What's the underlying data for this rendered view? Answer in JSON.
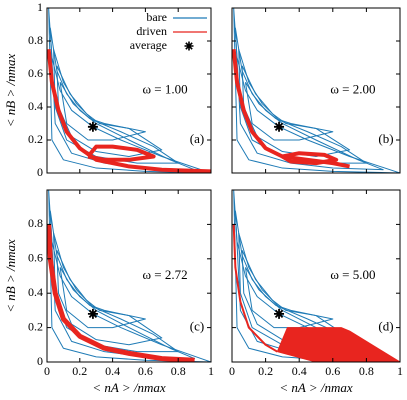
{
  "chart_data": [
    {
      "type": "line",
      "ylabel": "< nB > /nmax",
      "text": "ω = 1.00",
      "label": "(a)",
      "xlim": [
        0,
        1
      ],
      "ylim": [
        0,
        1
      ],
      "xticks": [
        0,
        0.2,
        0.4,
        0.6,
        0.8,
        1
      ],
      "yticks": [
        0,
        0.2,
        0.4,
        0.6,
        0.8,
        1
      ],
      "legend": "upper right",
      "series": [
        {
          "name": "bare",
          "color": "#1f7bb6",
          "width": 1,
          "x": [
            0.02,
            0.06,
            0.12,
            0.2,
            0.3,
            0.5,
            0.75,
            0.9,
            0.6,
            0.35,
            0.15,
            0.05,
            0.02
          ],
          "values": [
            0.88,
            0.62,
            0.48,
            0.38,
            0.3,
            0.2,
            0.08,
            0.02,
            0.03,
            0.06,
            0.12,
            0.3,
            0.88
          ]
        },
        {
          "color": "#1f7bb6",
          "width": 1,
          "x": [
            0.04,
            0.1,
            0.18,
            0.28,
            0.45,
            0.65,
            0.8,
            0.55,
            0.3,
            0.12,
            0.05,
            0.04
          ],
          "values": [
            0.75,
            0.55,
            0.42,
            0.32,
            0.25,
            0.16,
            0.06,
            0.06,
            0.1,
            0.2,
            0.4,
            0.75
          ]
        },
        {
          "color": "#1f7bb6",
          "width": 1,
          "x": [
            0.06,
            0.14,
            0.24,
            0.32,
            0.5,
            0.7,
            0.5,
            0.3,
            0.15,
            0.07,
            0.06
          ],
          "values": [
            0.65,
            0.48,
            0.36,
            0.3,
            0.27,
            0.14,
            0.1,
            0.13,
            0.22,
            0.4,
            0.65
          ]
        },
        {
          "color": "#1f7bb6",
          "width": 1,
          "x": [
            0.01,
            0.03,
            0.08,
            0.15,
            0.28,
            0.45,
            0.7,
            1,
            0.6,
            0.3,
            0.1,
            0.03,
            0.01
          ],
          "values": [
            1,
            0.7,
            0.5,
            0.38,
            0.28,
            0.2,
            0.1,
            0,
            0.01,
            0.03,
            0.08,
            0.2,
            1
          ]
        },
        {
          "color": "#1f7bb6",
          "width": 1,
          "x": [
            0.08,
            0.16,
            0.26,
            0.35,
            0.6,
            0.4,
            0.25,
            0.12,
            0.08
          ],
          "values": [
            0.55,
            0.42,
            0.33,
            0.3,
            0.25,
            0.2,
            0.2,
            0.3,
            0.55
          ]
        },
        {
          "name": "driven",
          "color": "#e8251f",
          "width": 4,
          "x": [
            0.01,
            0.03,
            0.07,
            0.12,
            0.2,
            0.3,
            0.5,
            0.7,
            1
          ],
          "values": [
            0.75,
            0.55,
            0.38,
            0.25,
            0.15,
            0.08,
            0.04,
            0.02,
            0.01
          ]
        },
        {
          "color": "#e8251f",
          "width": 4,
          "x": [
            0.25,
            0.3,
            0.4,
            0.55,
            0.65,
            0.5,
            0.35,
            0.25
          ],
          "values": [
            0.1,
            0.16,
            0.16,
            0.14,
            0.1,
            0.08,
            0.08,
            0.1
          ]
        }
      ],
      "average": {
        "name": "average",
        "x": 0.28,
        "y": 0.28
      }
    },
    {
      "type": "line",
      "text": "ω = 2.00",
      "label": "(b)",
      "xlim": [
        0,
        1
      ],
      "ylim": [
        0,
        1
      ],
      "xticks": [
        0,
        0.2,
        0.4,
        0.6,
        0.8,
        1
      ],
      "yticks": [
        0,
        0.2,
        0.4,
        0.6,
        0.8,
        1
      ],
      "series": [
        {
          "color": "#1f7bb6",
          "width": 1,
          "x": [
            0.02,
            0.06,
            0.12,
            0.2,
            0.3,
            0.5,
            0.75,
            0.9,
            0.6,
            0.35,
            0.15,
            0.05,
            0.02
          ],
          "values": [
            0.88,
            0.62,
            0.48,
            0.38,
            0.3,
            0.2,
            0.08,
            0.02,
            0.03,
            0.06,
            0.12,
            0.3,
            0.88
          ]
        },
        {
          "color": "#1f7bb6",
          "width": 1,
          "x": [
            0.04,
            0.1,
            0.18,
            0.28,
            0.45,
            0.65,
            0.8,
            0.55,
            0.3,
            0.12,
            0.05,
            0.04
          ],
          "values": [
            0.75,
            0.55,
            0.42,
            0.32,
            0.25,
            0.16,
            0.06,
            0.06,
            0.1,
            0.2,
            0.4,
            0.75
          ]
        },
        {
          "color": "#1f7bb6",
          "width": 1,
          "x": [
            0.06,
            0.14,
            0.24,
            0.32,
            0.5,
            0.7,
            0.5,
            0.3,
            0.15,
            0.07,
            0.06
          ],
          "values": [
            0.65,
            0.48,
            0.36,
            0.3,
            0.27,
            0.14,
            0.1,
            0.13,
            0.22,
            0.4,
            0.65
          ]
        },
        {
          "color": "#1f7bb6",
          "width": 1,
          "x": [
            0.01,
            0.03,
            0.08,
            0.15,
            0.28,
            0.45,
            0.7,
            1,
            0.6,
            0.3,
            0.1,
            0.03,
            0.01
          ],
          "values": [
            1,
            0.7,
            0.5,
            0.38,
            0.28,
            0.2,
            0.1,
            0,
            0.01,
            0.03,
            0.08,
            0.2,
            1
          ]
        },
        {
          "color": "#1f7bb6",
          "width": 1,
          "x": [
            0.08,
            0.16,
            0.26,
            0.35,
            0.6,
            0.4,
            0.25,
            0.12,
            0.08
          ],
          "values": [
            0.55,
            0.42,
            0.33,
            0.3,
            0.25,
            0.2,
            0.2,
            0.3,
            0.55
          ]
        },
        {
          "color": "#e8251f",
          "width": 4,
          "x": [
            0.01,
            0.03,
            0.07,
            0.12,
            0.2,
            0.3,
            0.45,
            0.6,
            0.7
          ],
          "values": [
            0.75,
            0.55,
            0.38,
            0.25,
            0.15,
            0.1,
            0.08,
            0.06,
            0.04
          ]
        },
        {
          "color": "#e8251f",
          "width": 4,
          "x": [
            0.3,
            0.4,
            0.55,
            0.62,
            0.5,
            0.35,
            0.3
          ],
          "values": [
            0.1,
            0.12,
            0.11,
            0.08,
            0.06,
            0.07,
            0.1
          ]
        }
      ],
      "average": {
        "x": 0.28,
        "y": 0.28
      }
    },
    {
      "type": "line",
      "xlabel": "< nA > /nmax",
      "ylabel": "< nB > /nmax",
      "text": "ω = 2.72",
      "label": "(c)",
      "xlim": [
        0,
        1
      ],
      "ylim": [
        0,
        1
      ],
      "xticks": [
        0,
        0.2,
        0.4,
        0.6,
        0.8,
        1
      ],
      "yticks": [
        0,
        0.2,
        0.4,
        0.6,
        0.8
      ],
      "series": [
        {
          "color": "#1f7bb6",
          "width": 1,
          "x": [
            0.02,
            0.06,
            0.12,
            0.2,
            0.3,
            0.5,
            0.75,
            0.9,
            0.6,
            0.35,
            0.15,
            0.05,
            0.02
          ],
          "values": [
            0.88,
            0.62,
            0.48,
            0.38,
            0.3,
            0.2,
            0.08,
            0.02,
            0.03,
            0.06,
            0.12,
            0.3,
            0.88
          ]
        },
        {
          "color": "#1f7bb6",
          "width": 1,
          "x": [
            0.04,
            0.1,
            0.18,
            0.28,
            0.45,
            0.65,
            0.8,
            0.55,
            0.3,
            0.12,
            0.05,
            0.04
          ],
          "values": [
            0.75,
            0.55,
            0.42,
            0.32,
            0.25,
            0.16,
            0.06,
            0.06,
            0.1,
            0.2,
            0.4,
            0.75
          ]
        },
        {
          "color": "#1f7bb6",
          "width": 1,
          "x": [
            0.06,
            0.14,
            0.24,
            0.32,
            0.5,
            0.7,
            0.5,
            0.3,
            0.15,
            0.07,
            0.06
          ],
          "values": [
            0.65,
            0.48,
            0.36,
            0.3,
            0.27,
            0.14,
            0.1,
            0.13,
            0.22,
            0.4,
            0.65
          ]
        },
        {
          "color": "#1f7bb6",
          "width": 1,
          "x": [
            0.01,
            0.03,
            0.08,
            0.15,
            0.28,
            0.45,
            0.7,
            1,
            0.6,
            0.3,
            0.1,
            0.03,
            0.01
          ],
          "values": [
            1,
            0.7,
            0.5,
            0.38,
            0.28,
            0.2,
            0.1,
            0,
            0.01,
            0.03,
            0.08,
            0.2,
            1
          ]
        },
        {
          "color": "#1f7bb6",
          "width": 1,
          "x": [
            0.08,
            0.16,
            0.26,
            0.35,
            0.6,
            0.4,
            0.25,
            0.12,
            0.08
          ],
          "values": [
            0.55,
            0.42,
            0.33,
            0.3,
            0.25,
            0.2,
            0.2,
            0.3,
            0.55
          ]
        },
        {
          "color": "#e8251f",
          "width": 5,
          "x": [
            0.01,
            0.02,
            0.05,
            0.1,
            0.2,
            0.35,
            0.5,
            0.7,
            0.9
          ],
          "values": [
            0.8,
            0.6,
            0.4,
            0.25,
            0.15,
            0.08,
            0.05,
            0.02,
            0.01
          ]
        }
      ],
      "average": {
        "x": 0.28,
        "y": 0.28
      }
    },
    {
      "type": "line",
      "xlabel": "< nA > /nmax",
      "text": "ω = 5.00",
      "label": "(d)",
      "xlim": [
        0,
        1
      ],
      "ylim": [
        0,
        1
      ],
      "xticks": [
        0,
        0.2,
        0.4,
        0.6,
        0.8,
        1
      ],
      "yticks": [
        0,
        0.2,
        0.4,
        0.6,
        0.8,
        1
      ],
      "series": [
        {
          "color": "#1f7bb6",
          "width": 1,
          "x": [
            0.02,
            0.06,
            0.12,
            0.2,
            0.3,
            0.5,
            0.75,
            0.9,
            0.6,
            0.35,
            0.15,
            0.05,
            0.02
          ],
          "values": [
            0.88,
            0.62,
            0.48,
            0.38,
            0.3,
            0.2,
            0.08,
            0.02,
            0.03,
            0.06,
            0.12,
            0.3,
            0.88
          ]
        },
        {
          "color": "#1f7bb6",
          "width": 1,
          "x": [
            0.04,
            0.1,
            0.18,
            0.28,
            0.45,
            0.65,
            0.8,
            0.55,
            0.3,
            0.12,
            0.05,
            0.04
          ],
          "values": [
            0.75,
            0.55,
            0.42,
            0.32,
            0.25,
            0.16,
            0.06,
            0.06,
            0.1,
            0.2,
            0.4,
            0.75
          ]
        },
        {
          "color": "#1f7bb6",
          "width": 1,
          "x": [
            0.06,
            0.14,
            0.24,
            0.32,
            0.5,
            0.7,
            0.5,
            0.3,
            0.15,
            0.07,
            0.06
          ],
          "values": [
            0.65,
            0.48,
            0.36,
            0.3,
            0.27,
            0.14,
            0.1,
            0.13,
            0.22,
            0.4,
            0.65
          ]
        },
        {
          "color": "#1f7bb6",
          "width": 1,
          "x": [
            0.01,
            0.03,
            0.08,
            0.15,
            0.28,
            0.45,
            0.7,
            1,
            0.6,
            0.3,
            0.1,
            0.03,
            0.01
          ],
          "values": [
            1,
            0.7,
            0.5,
            0.38,
            0.28,
            0.2,
            0.1,
            0,
            0.01,
            0.03,
            0.08,
            0.2,
            1
          ]
        },
        {
          "color": "#1f7bb6",
          "width": 1,
          "x": [
            0.08,
            0.16,
            0.26,
            0.35,
            0.6,
            0.4,
            0.25,
            0.12,
            0.08
          ],
          "values": [
            0.55,
            0.42,
            0.33,
            0.3,
            0.25,
            0.2,
            0.2,
            0.3,
            0.55
          ]
        },
        {
          "color": "#e8251f",
          "width": 2,
          "x": [
            0.01,
            0.02,
            0.05,
            0.1,
            0.2,
            0.27
          ],
          "values": [
            0.8,
            0.55,
            0.35,
            0.2,
            0.1,
            0.06
          ]
        },
        {
          "color": "#e8251f",
          "width": 1,
          "fill": true,
          "x": [
            0.27,
            0.33,
            0.65,
            0.7,
            1,
            0.5,
            0.27
          ],
          "values": [
            0.06,
            0.2,
            0.2,
            0.18,
            0,
            0,
            0.06
          ]
        }
      ],
      "average": {
        "x": 0.28,
        "y": 0.28
      }
    }
  ]
}
